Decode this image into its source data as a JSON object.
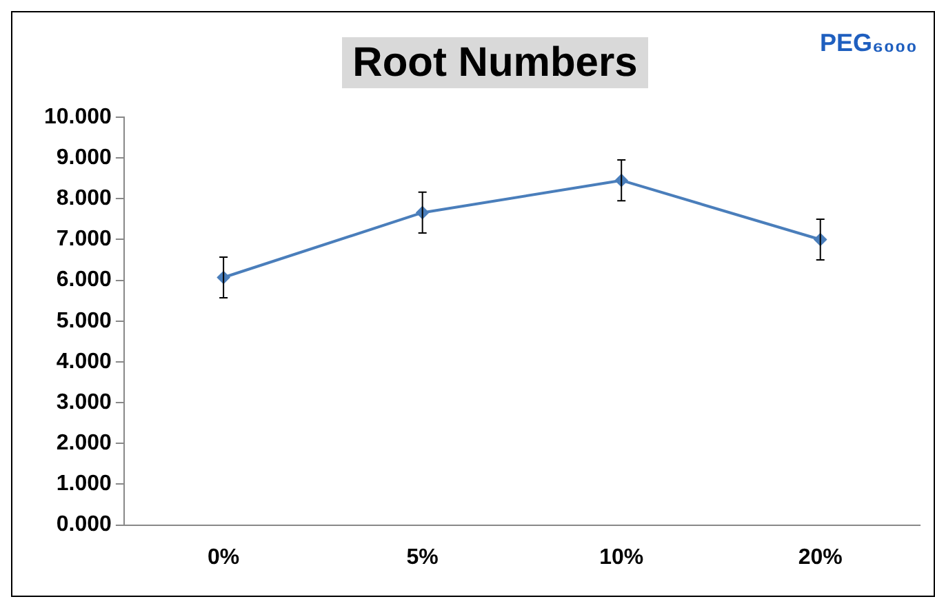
{
  "chart_data": {
    "type": "line",
    "title": "Root Numbers",
    "annotations": [
      "PEG₆₀₀₀"
    ],
    "categories": [
      "0%",
      "5%",
      "10%",
      "20%"
    ],
    "series": [
      {
        "color": "#4a7ebb",
        "values": [
          6.07,
          7.66,
          8.45,
          7.0
        ],
        "errors": [
          0.5,
          0.5,
          0.5,
          0.5
        ]
      }
    ],
    "ylim": [
      0,
      10
    ],
    "yticks": [
      {
        "value": 0,
        "label": "0.000"
      },
      {
        "value": 1,
        "label": "1.000"
      },
      {
        "value": 2,
        "label": "2.000"
      },
      {
        "value": 3,
        "label": "3.000"
      },
      {
        "value": 4,
        "label": "4.000"
      },
      {
        "value": 5,
        "label": "5.000"
      },
      {
        "value": 6,
        "label": "6.000"
      },
      {
        "value": 7,
        "label": "7.000"
      },
      {
        "value": 8,
        "label": "8.000"
      },
      {
        "value": 9,
        "label": "9.000"
      },
      {
        "value": 10,
        "label": "10.000"
      }
    ],
    "grid": false,
    "legend": false,
    "marker": "diamond",
    "line_style": "solid"
  }
}
